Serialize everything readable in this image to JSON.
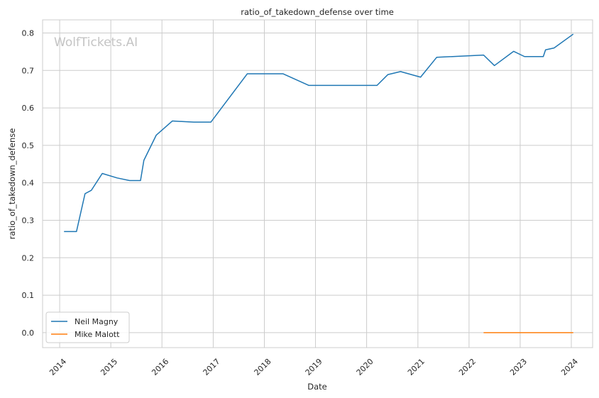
{
  "chart_data": {
    "type": "line",
    "title": "ratio_of_takedown_defense over time",
    "xlabel": "Date",
    "ylabel": "ratio_of_takedown_defense",
    "watermark": "WolfTickets.AI",
    "xlim": [
      "2013-09-01",
      "2024-06-01"
    ],
    "ylim": [
      -0.04,
      0.835
    ],
    "x_ticks": [
      "2014-01-01",
      "2015-01-01",
      "2016-01-01",
      "2017-01-01",
      "2018-01-01",
      "2019-01-01",
      "2020-01-01",
      "2021-01-01",
      "2022-01-01",
      "2023-01-01",
      "2024-01-01"
    ],
    "x_tick_labels": [
      "2014",
      "2015",
      "2016",
      "2017",
      "2018",
      "2019",
      "2020",
      "2021",
      "2022",
      "2023",
      "2024"
    ],
    "y_ticks": [
      0.0,
      0.1,
      0.2,
      0.3,
      0.4,
      0.5,
      0.6,
      0.7,
      0.8
    ],
    "y_tick_labels": [
      "0.0",
      "0.1",
      "0.2",
      "0.3",
      "0.4",
      "0.5",
      "0.6",
      "0.7",
      "0.8"
    ],
    "grid": true,
    "legend_position": "lower-left",
    "series": [
      {
        "name": "Neil Magny",
        "color": "#1f77b4",
        "x": [
          "2014-02-01",
          "2014-05-01",
          "2014-07-01",
          "2014-08-15",
          "2014-11-01",
          "2015-02-15",
          "2015-05-15",
          "2015-08-01",
          "2015-08-25",
          "2015-11-21",
          "2016-03-15",
          "2016-08-15",
          "2016-12-15",
          "2017-09-01",
          "2018-05-15",
          "2018-11-15",
          "2019-05-01",
          "2020-03-15",
          "2020-06-01",
          "2020-08-30",
          "2021-01-20",
          "2021-05-15",
          "2022-04-15",
          "2022-07-01",
          "2022-11-15",
          "2023-02-01",
          "2023-06-15",
          "2023-07-01",
          "2023-08-31",
          "2024-01-15"
        ],
        "y": [
          0.27,
          0.27,
          0.371,
          0.38,
          0.425,
          0.413,
          0.406,
          0.406,
          0.46,
          0.527,
          0.565,
          0.562,
          0.562,
          0.691,
          0.691,
          0.66,
          0.66,
          0.66,
          0.689,
          0.697,
          0.682,
          0.735,
          0.741,
          0.713,
          0.751,
          0.737,
          0.737,
          0.755,
          0.76,
          0.797
        ]
      },
      {
        "name": "Mike Malott",
        "color": "#ff7f0e",
        "x": [
          "2022-04-15",
          "2022-11-15",
          "2023-06-15",
          "2024-01-15"
        ],
        "y": [
          0.0,
          0.0,
          0.0,
          0.0
        ]
      }
    ]
  }
}
